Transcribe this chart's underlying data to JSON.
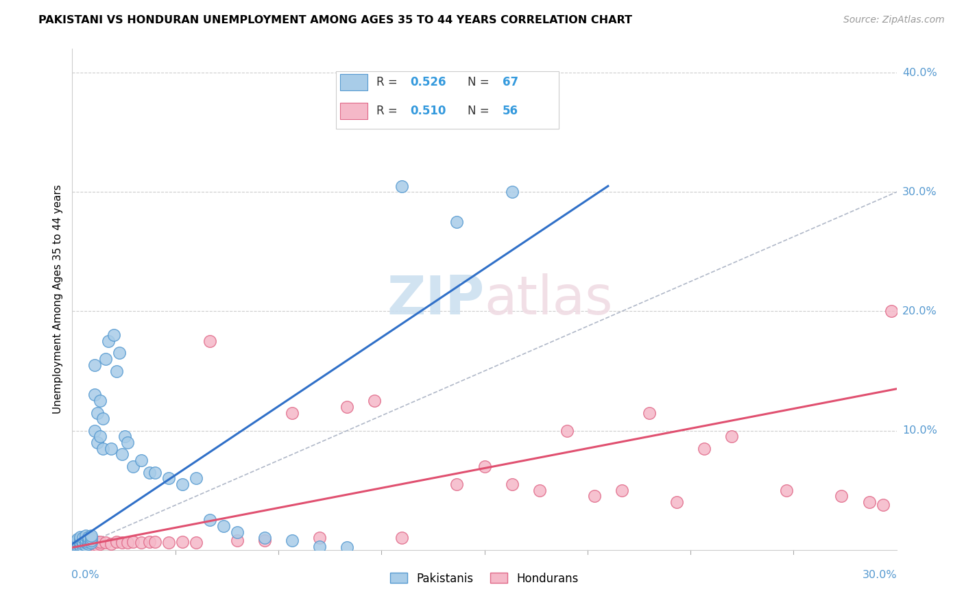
{
  "title": "PAKISTANI VS HONDURAN UNEMPLOYMENT AMONG AGES 35 TO 44 YEARS CORRELATION CHART",
  "source": "Source: ZipAtlas.com",
  "ylabel": "Unemployment Among Ages 35 to 44 years",
  "xmin": 0.0,
  "xmax": 0.3,
  "ymin": 0.0,
  "ymax": 0.42,
  "pakistani_color": "#a8cce8",
  "honduran_color": "#f5b8c8",
  "pakistani_edge": "#5599d0",
  "honduran_edge": "#e06888",
  "blue_line_color": "#3070c8",
  "pink_line_color": "#e05070",
  "ref_line_color": "#b0b8c8",
  "ytick_color": "#5599d0",
  "xtick_color": "#5599d0",
  "right_yticks": [
    0.1,
    0.2,
    0.3,
    0.4
  ],
  "right_ytick_labels": [
    "10.0%",
    "20.0%",
    "30.0%",
    "40.0%"
  ],
  "blue_line_x": [
    0.0,
    0.195
  ],
  "blue_line_y": [
    0.005,
    0.305
  ],
  "pink_line_x": [
    0.0,
    0.3
  ],
  "pink_line_y": [
    0.002,
    0.135
  ],
  "ref_line_x": [
    0.12,
    0.3
  ],
  "ref_line_y": [
    0.12,
    0.3
  ],
  "pak_x": [
    0.001,
    0.001,
    0.001,
    0.001,
    0.002,
    0.002,
    0.002,
    0.002,
    0.002,
    0.003,
    0.003,
    0.003,
    0.003,
    0.003,
    0.003,
    0.004,
    0.004,
    0.004,
    0.004,
    0.005,
    0.005,
    0.005,
    0.005,
    0.005,
    0.006,
    0.006,
    0.006,
    0.006,
    0.007,
    0.007,
    0.007,
    0.007,
    0.008,
    0.008,
    0.008,
    0.009,
    0.009,
    0.01,
    0.01,
    0.011,
    0.011,
    0.012,
    0.013,
    0.014,
    0.015,
    0.016,
    0.017,
    0.018,
    0.019,
    0.02,
    0.022,
    0.025,
    0.028,
    0.03,
    0.035,
    0.04,
    0.045,
    0.05,
    0.055,
    0.06,
    0.07,
    0.08,
    0.09,
    0.1,
    0.12,
    0.14,
    0.16
  ],
  "pak_y": [
    0.002,
    0.004,
    0.005,
    0.007,
    0.002,
    0.004,
    0.006,
    0.007,
    0.009,
    0.003,
    0.004,
    0.006,
    0.007,
    0.009,
    0.011,
    0.003,
    0.005,
    0.007,
    0.01,
    0.004,
    0.006,
    0.007,
    0.009,
    0.012,
    0.005,
    0.007,
    0.009,
    0.011,
    0.006,
    0.008,
    0.01,
    0.012,
    0.1,
    0.13,
    0.155,
    0.09,
    0.115,
    0.095,
    0.125,
    0.085,
    0.11,
    0.16,
    0.175,
    0.085,
    0.18,
    0.15,
    0.165,
    0.08,
    0.095,
    0.09,
    0.07,
    0.075,
    0.065,
    0.065,
    0.06,
    0.055,
    0.06,
    0.025,
    0.02,
    0.015,
    0.01,
    0.008,
    0.003,
    0.002,
    0.305,
    0.275,
    0.3
  ],
  "hon_x": [
    0.001,
    0.001,
    0.002,
    0.002,
    0.003,
    0.003,
    0.004,
    0.004,
    0.005,
    0.005,
    0.006,
    0.006,
    0.007,
    0.007,
    0.008,
    0.008,
    0.009,
    0.009,
    0.01,
    0.01,
    0.012,
    0.014,
    0.016,
    0.018,
    0.02,
    0.022,
    0.025,
    0.028,
    0.03,
    0.035,
    0.04,
    0.045,
    0.05,
    0.06,
    0.07,
    0.08,
    0.09,
    0.1,
    0.11,
    0.12,
    0.14,
    0.15,
    0.16,
    0.17,
    0.18,
    0.19,
    0.2,
    0.21,
    0.22,
    0.23,
    0.24,
    0.26,
    0.28,
    0.29,
    0.295,
    0.298
  ],
  "hon_y": [
    0.002,
    0.004,
    0.003,
    0.005,
    0.003,
    0.005,
    0.004,
    0.006,
    0.003,
    0.005,
    0.004,
    0.006,
    0.003,
    0.006,
    0.004,
    0.006,
    0.004,
    0.007,
    0.005,
    0.007,
    0.006,
    0.005,
    0.007,
    0.006,
    0.006,
    0.007,
    0.006,
    0.007,
    0.007,
    0.006,
    0.007,
    0.006,
    0.175,
    0.008,
    0.008,
    0.115,
    0.01,
    0.12,
    0.125,
    0.01,
    0.055,
    0.07,
    0.055,
    0.05,
    0.1,
    0.045,
    0.05,
    0.115,
    0.04,
    0.085,
    0.095,
    0.05,
    0.045,
    0.04,
    0.038,
    0.2
  ]
}
